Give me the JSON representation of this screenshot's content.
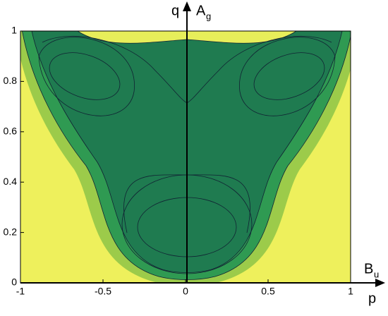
{
  "chart_data": {
    "type": "contour",
    "xlim": [
      -1,
      1
    ],
    "xticks": [
      -1,
      -0.5,
      0,
      0.5,
      1
    ],
    "ylim": [
      0,
      1
    ],
    "yticks": [
      0,
      0.2,
      0.4,
      0.6,
      0.8,
      1
    ],
    "y_axis_label": "q",
    "x_axis_label": "p",
    "y_axis_symbol": {
      "base": "A",
      "sub": "g"
    },
    "x_axis_symbol": {
      "base": "B",
      "sub": "u"
    }
  }
}
